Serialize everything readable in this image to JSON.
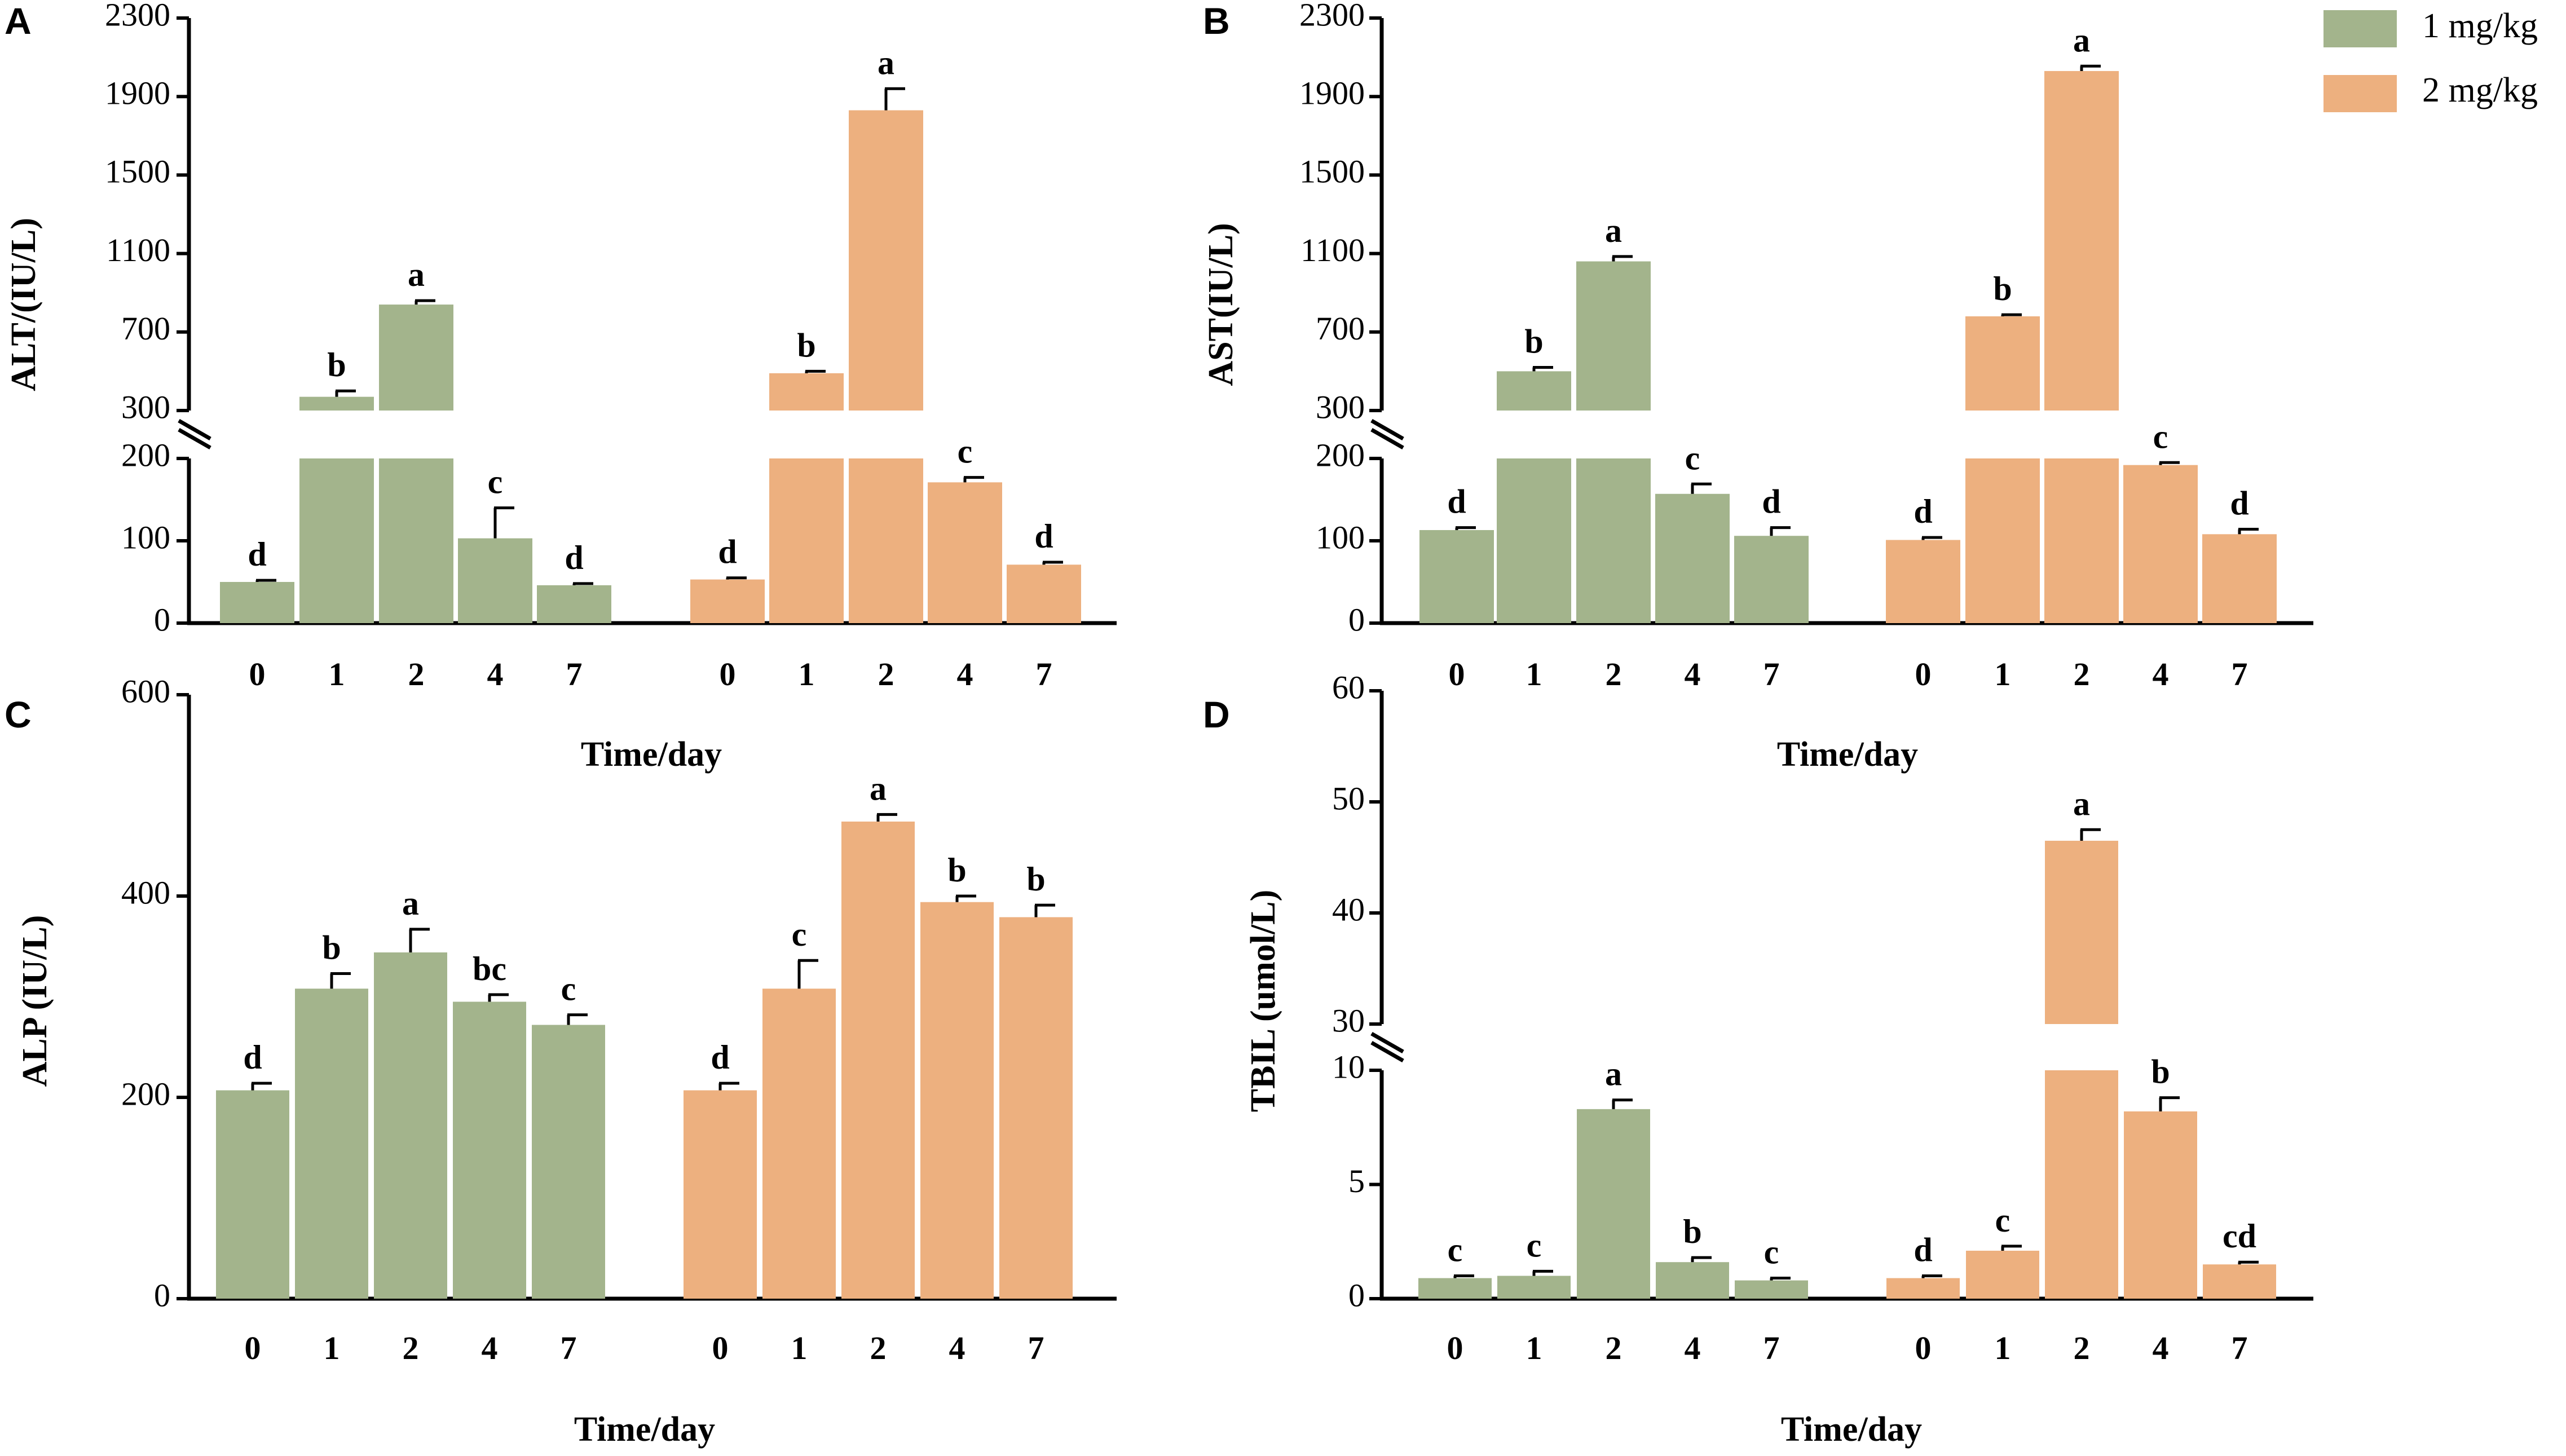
{
  "colors": {
    "dose_1": "#A3B48C",
    "dose_2": "#EDB07F",
    "axis": "#000000",
    "error": "#000000"
  },
  "legend": [
    {
      "label": "1 mg/kg",
      "color": "#A3B48C"
    },
    {
      "label": "2 mg/kg",
      "color": "#EDB07F"
    }
  ],
  "chart_data": [
    {
      "panel": "A",
      "type": "bar",
      "title": "",
      "ylabel": "ALT/(IU/L)",
      "xlabel": "Time/day",
      "categories": [
        "0",
        "1",
        "2",
        "4",
        "7"
      ],
      "axis_break": {
        "lower": [
          0,
          200
        ],
        "upper": [
          300,
          2300
        ]
      },
      "yticks_lower": [
        0,
        100,
        200
      ],
      "yticks_upper": [
        300,
        700,
        1100,
        1500,
        1900,
        2300
      ],
      "series": [
        {
          "name": "1 mg/kg",
          "values": [
            50,
            370,
            840,
            103,
            46
          ],
          "errors": [
            2,
            30,
            20,
            37,
            2
          ],
          "letters": [
            "d",
            "b",
            "a",
            "c",
            "d"
          ]
        },
        {
          "name": "2 mg/kg",
          "values": [
            53,
            490,
            1830,
            171,
            71
          ],
          "errors": [
            2,
            10,
            110,
            6,
            3
          ],
          "letters": [
            "d",
            "b",
            "a",
            "c",
            "d"
          ]
        }
      ]
    },
    {
      "panel": "B",
      "type": "bar",
      "title": "",
      "ylabel": "AST(IU/L)",
      "xlabel": "Time/day",
      "categories": [
        "0",
        "1",
        "2",
        "4",
        "7"
      ],
      "axis_break": {
        "lower": [
          0,
          200
        ],
        "upper": [
          300,
          2300
        ]
      },
      "yticks_lower": [
        0,
        100,
        200
      ],
      "yticks_upper": [
        300,
        700,
        1100,
        1500,
        1900,
        2300
      ],
      "series": [
        {
          "name": "1 mg/kg",
          "values": [
            113,
            500,
            1060,
            157,
            106
          ],
          "errors": [
            3,
            20,
            25,
            12,
            10
          ],
          "letters": [
            "d",
            "b",
            "a",
            "c",
            "d"
          ]
        },
        {
          "name": "2 mg/kg",
          "values": [
            101,
            780,
            2030,
            192,
            108
          ],
          "errors": [
            3,
            8,
            25,
            3,
            6
          ],
          "letters": [
            "d",
            "b",
            "a",
            "c",
            "d"
          ]
        }
      ]
    },
    {
      "panel": "C",
      "type": "bar",
      "title": "",
      "ylabel": "ALP (IU/L)",
      "xlabel": "Time/day",
      "categories": [
        "0",
        "1",
        "2",
        "4",
        "7"
      ],
      "ylim": [
        0,
        600
      ],
      "yticks": [
        0,
        200,
        400,
        600
      ],
      "series": [
        {
          "name": "1 mg/kg",
          "values": [
            207,
            308,
            344,
            295,
            272
          ],
          "errors": [
            7,
            15,
            23,
            7,
            10
          ],
          "letters": [
            "d",
            "b",
            "a",
            "bc",
            "c"
          ]
        },
        {
          "name": "2 mg/kg",
          "values": [
            207,
            308,
            474,
            394,
            379
          ],
          "errors": [
            7,
            28,
            7,
            6,
            12
          ],
          "letters": [
            "d",
            "c",
            "a",
            "b",
            "b"
          ]
        }
      ]
    },
    {
      "panel": "D",
      "type": "bar",
      "title": "",
      "ylabel": "TBIL (umol/L)",
      "xlabel": "Time/day",
      "categories": [
        "0",
        "1",
        "2",
        "4",
        "7"
      ],
      "axis_break": {
        "lower": [
          0,
          10
        ],
        "upper": [
          30,
          60
        ]
      },
      "yticks_lower": [
        0,
        5,
        10
      ],
      "yticks_upper": [
        30,
        40,
        50,
        60
      ],
      "series": [
        {
          "name": "1 mg/kg",
          "values": [
            0.9,
            1.0,
            8.3,
            1.6,
            0.8
          ],
          "errors": [
            0.1,
            0.2,
            0.4,
            0.2,
            0.1
          ],
          "letters": [
            "c",
            "c",
            "a",
            "b",
            "c"
          ]
        },
        {
          "name": "2 mg/kg",
          "values": [
            0.9,
            2.1,
            46.5,
            8.2,
            1.5
          ],
          "errors": [
            0.1,
            0.2,
            1.0,
            0.6,
            0.1
          ],
          "letters": [
            "d",
            "c",
            "a",
            "b",
            "cd"
          ]
        }
      ]
    }
  ]
}
